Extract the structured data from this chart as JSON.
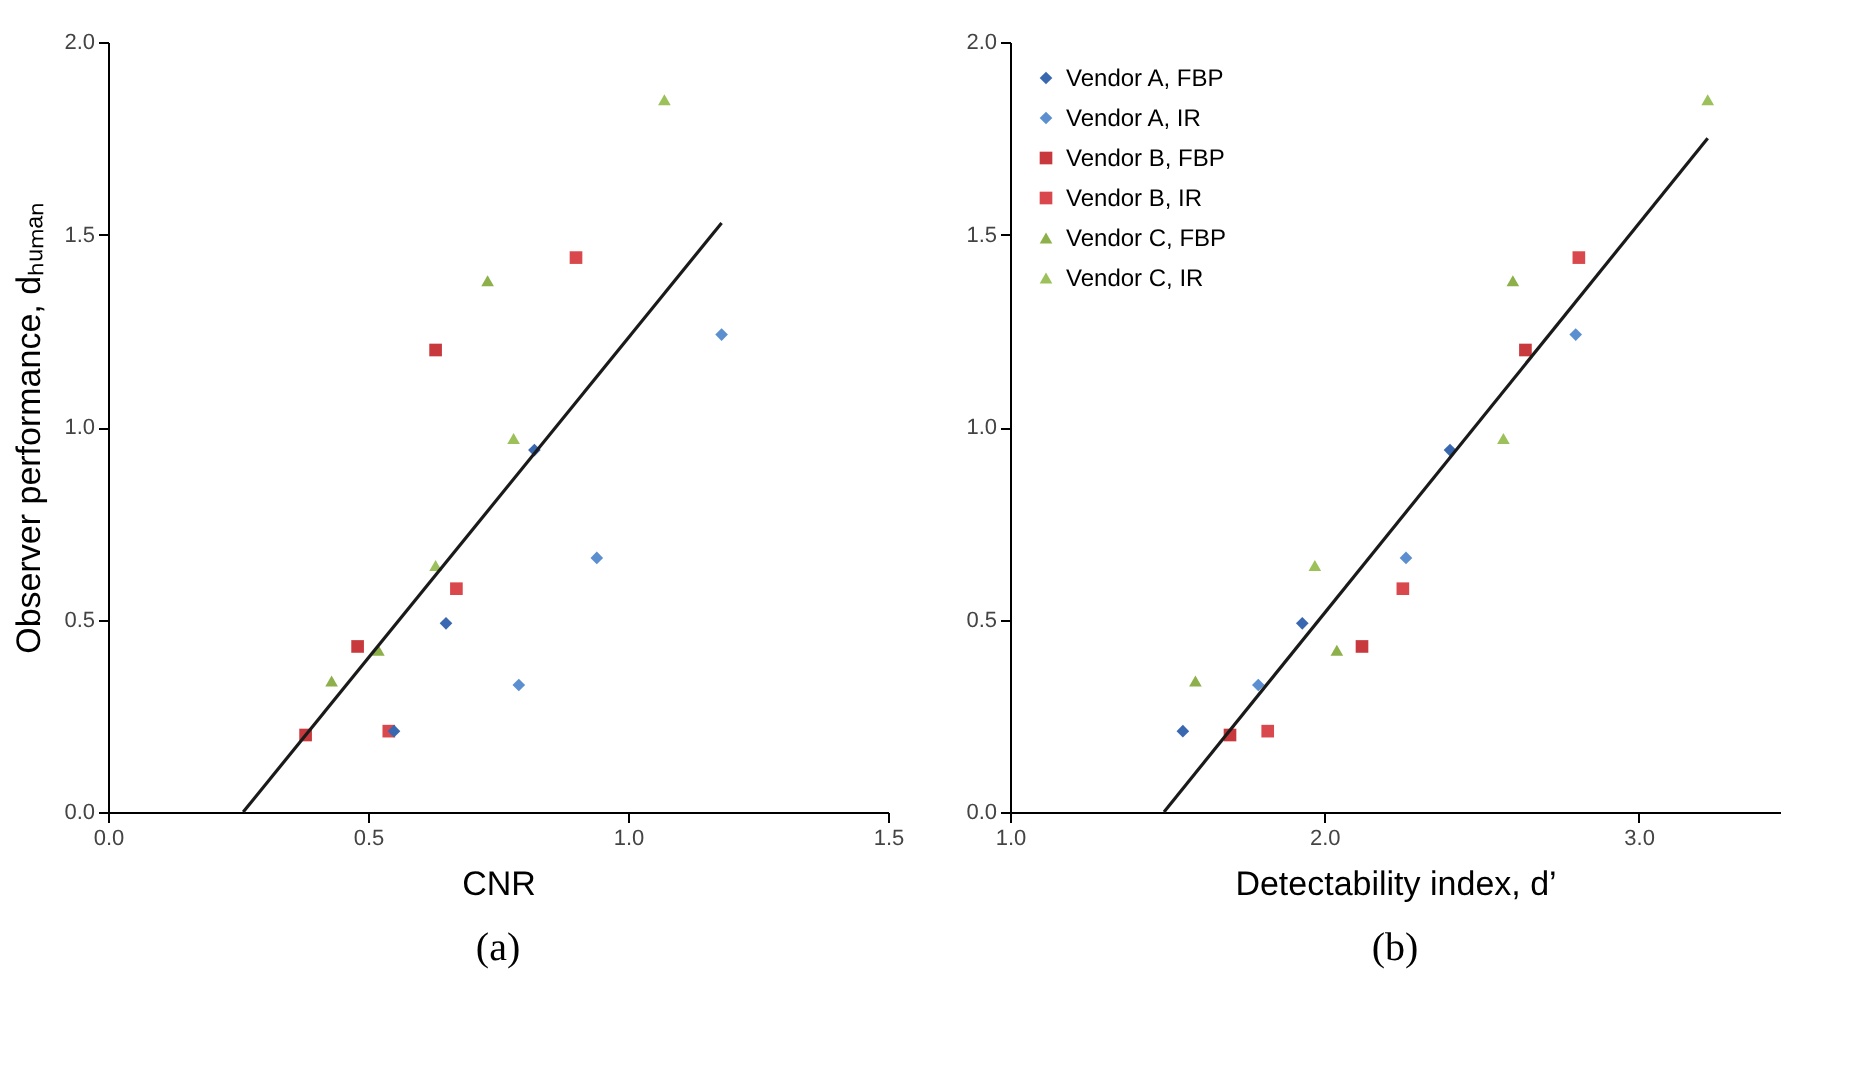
{
  "chart_data": [
    {
      "type": "scatter",
      "xlabel": "CNR",
      "ylabel": "Observer performance, dₕᵤₘₐₙ",
      "annotations": [
        "(a)"
      ],
      "xlim": [
        0.0,
        1.5
      ],
      "xticks": [
        {
          "value": 0,
          "label": "0.0"
        },
        {
          "value": 0.5,
          "label": "0.5"
        },
        {
          "value": 1,
          "label": "1.0"
        },
        {
          "value": 1.5,
          "label": "1.5"
        }
      ],
      "ylim": [
        0.0,
        2.0
      ],
      "yticks": [
        {
          "value": 0,
          "label": "0.0"
        },
        {
          "value": 0.5,
          "label": "0.5"
        },
        {
          "value": 1,
          "label": "1.0"
        },
        {
          "value": 1.5,
          "label": "1.5"
        },
        {
          "value": 2,
          "label": "2.0"
        }
      ],
      "grid": false,
      "legend": false,
      "series": [
        {
          "color": "#3a68b0",
          "marker": "diamond",
          "x": [
            0.55,
            0.65,
            0.82
          ],
          "values": [
            0.21,
            0.49,
            0.94
          ]
        },
        {
          "color": "#5b8fd0",
          "marker": "diamond",
          "x": [
            0.79,
            0.94,
            1.18
          ],
          "values": [
            0.33,
            0.66,
            1.24
          ]
        },
        {
          "color": "#c8393d",
          "marker": "square",
          "x": [
            0.38,
            0.48,
            0.63
          ],
          "values": [
            0.2,
            0.43,
            1.2
          ]
        },
        {
          "color": "#d9484c",
          "marker": "square",
          "x": [
            0.54,
            0.67,
            0.9
          ],
          "values": [
            0.21,
            0.58,
            1.44
          ]
        },
        {
          "color": "#8db04a",
          "marker": "triangle",
          "x": [
            0.43,
            0.52,
            0.73
          ],
          "values": [
            0.34,
            0.42,
            1.38
          ]
        },
        {
          "color": "#9cc05a",
          "marker": "triangle",
          "x": [
            0.63,
            0.78,
            1.07
          ],
          "values": [
            0.64,
            0.97,
            1.85
          ]
        },
        {
          "type": "line",
          "color": "#1a1a1a",
          "marker": "none",
          "line_style": "solid",
          "x": [
            0.26,
            1.18
          ],
          "values": [
            0.0,
            1.53
          ]
        }
      ]
    },
    {
      "type": "scatter",
      "xlabel": "Detectability index, d’",
      "annotations": [
        "(b)"
      ],
      "xlim": [
        1.0,
        3.45
      ],
      "xticks": [
        {
          "value": 1,
          "label": "1.0"
        },
        {
          "value": 2,
          "label": "2.0"
        },
        {
          "value": 3,
          "label": "3.0"
        }
      ],
      "ylim": [
        0.0,
        2.0
      ],
      "yticks": [
        {
          "value": 0,
          "label": "0.0"
        },
        {
          "value": 0.5,
          "label": "0.5"
        },
        {
          "value": 1,
          "label": "1.0"
        },
        {
          "value": 1.5,
          "label": "1.5"
        },
        {
          "value": 2,
          "label": "2.0"
        }
      ],
      "grid": false,
      "legend": "top left",
      "series": [
        {
          "name": "Vendor A, FBP",
          "color": "#3a68b0",
          "marker": "diamond",
          "x": [
            1.55,
            1.93,
            2.4
          ],
          "values": [
            0.21,
            0.49,
            0.94
          ]
        },
        {
          "name": "Vendor A, IR",
          "color": "#5b8fd0",
          "marker": "diamond",
          "x": [
            1.79,
            2.26,
            2.8
          ],
          "values": [
            0.33,
            0.66,
            1.24
          ]
        },
        {
          "name": "Vendor B, FBP",
          "color": "#c8393d",
          "marker": "square",
          "x": [
            1.7,
            2.12,
            2.64
          ],
          "values": [
            0.2,
            0.43,
            1.2
          ]
        },
        {
          "name": "Vendor B, IR",
          "color": "#d9484c",
          "marker": "square",
          "x": [
            1.82,
            2.25,
            2.81
          ],
          "values": [
            0.21,
            0.58,
            1.44
          ]
        },
        {
          "name": "Vendor C, FBP",
          "color": "#8db04a",
          "marker": "triangle",
          "x": [
            1.59,
            2.04,
            2.6
          ],
          "values": [
            0.34,
            0.42,
            1.38
          ]
        },
        {
          "name": "Vendor C, IR",
          "color": "#9cc05a",
          "marker": "triangle",
          "x": [
            1.97,
            2.57,
            3.22
          ],
          "values": [
            0.64,
            0.97,
            1.85
          ]
        },
        {
          "type": "line",
          "color": "#1a1a1a",
          "marker": "none",
          "line_style": "solid",
          "x": [
            1.49,
            3.22
          ],
          "values": [
            0.0,
            1.75
          ]
        }
      ]
    }
  ]
}
